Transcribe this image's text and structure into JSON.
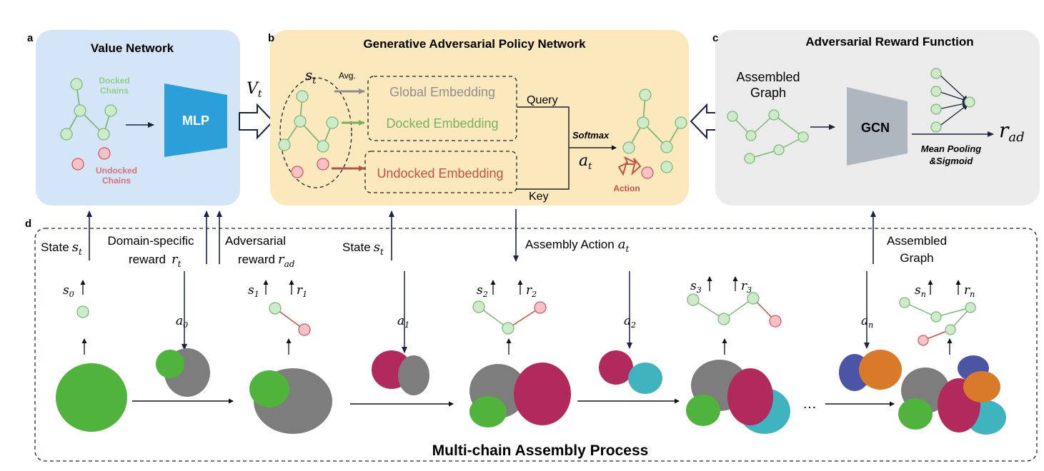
{
  "panels": {
    "a": {
      "letter": "a",
      "title": "Value Network",
      "docked": "Docked\nChains",
      "undocked": "Undocked\nChains",
      "mlp": "MLP"
    },
    "b": {
      "letter": "b",
      "title": "Generative Adversarial Policy Network",
      "state": "s",
      "state_sub": "t",
      "avg": "Avg.",
      "global": "Global Embedding",
      "docked": "Docked Embedding",
      "undocked": "Undocked Embedding",
      "query": "Query",
      "key": "Key",
      "softmax": "Softmax",
      "action_var": "a",
      "action_sub": "t",
      "action": "Action",
      "value": "V",
      "value_sub": "t"
    },
    "c": {
      "letter": "c",
      "title": "Adversarial Reward Function",
      "assembled": "Assembled\nGraph",
      "gcn": "GCN",
      "pooling": "Mean Pooling\n&Sigmoid",
      "reward": "r",
      "reward_sub": "ad"
    },
    "d": {
      "letter": "d",
      "title": "Multi-chain Assembly Process",
      "state1": "State",
      "domain": "Domain-specific",
      "reward": "reward",
      "adversarial": "Adversarial",
      "state2": "State",
      "assembly_action": "Assembly Action",
      "assembled": "Assembled\nGraph",
      "ellipsis": "…"
    }
  },
  "colors": {
    "value_bg": "#d5e5f8",
    "policy_bg": "#fbe8bc",
    "reward_bg": "#ebebeb",
    "mlp": "#2a9fd8",
    "gcn": "#aeb7c0",
    "node_green": "#cdebc8",
    "node_green_stroke": "#7db87a",
    "node_red": "#f6c2c5",
    "node_red_stroke": "#d05a62",
    "arrow_dark": "#1b2340",
    "grey_text": "#8f8f8f",
    "green_text": "#74b25e",
    "red_text": "#c45046",
    "protein_green": "#4fb33c",
    "protein_grey": "#7d7d7d",
    "protein_crimson": "#b22a5c",
    "protein_cyan": "#3fb3be",
    "protein_blue": "#4a55a6",
    "protein_orange": "#d87a2a"
  }
}
